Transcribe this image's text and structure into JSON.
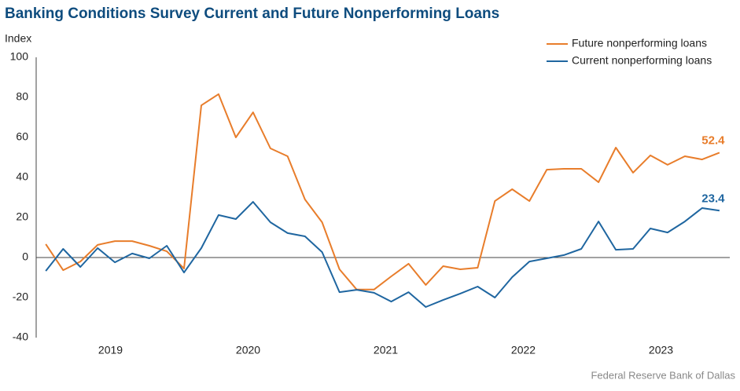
{
  "chart_data": {
    "type": "line",
    "title": "Banking Conditions Survey Current and Future Nonperforming Loans",
    "y_label": "Index",
    "source": "Federal Reserve Bank of Dallas",
    "x": [
      2019.03,
      2019.156,
      2019.281,
      2019.407,
      2019.532,
      2019.658,
      2019.783,
      2019.909,
      2020.034,
      2020.16,
      2020.285,
      2020.411,
      2020.536,
      2020.662,
      2020.787,
      2020.913,
      2021.038,
      2021.164,
      2021.289,
      2021.415,
      2021.54,
      2021.666,
      2021.791,
      2021.917,
      2022.042,
      2022.168,
      2022.293,
      2022.419,
      2022.544,
      2022.67,
      2022.795,
      2022.921,
      2023.046,
      2023.172,
      2023.297,
      2023.423,
      2023.548,
      2023.674,
      2023.799,
      2023.925
    ],
    "series": [
      {
        "name": "Future nonperforming loans",
        "color": "#e87d2b",
        "values": [
          6.7,
          -6.3,
          -2,
          6.3,
          8.2,
          8.2,
          5.9,
          3.1,
          -5.5,
          76,
          81.6,
          60,
          72.5,
          54.5,
          50.6,
          29,
          17.6,
          -5.9,
          -16,
          -16,
          -9.4,
          -3.1,
          -13.7,
          -4.3,
          -5.9,
          -5.1,
          28.2,
          34.1,
          28.2,
          43.9,
          44.3,
          44.3,
          37.6,
          54.9,
          42.4,
          51,
          46.3,
          50.6,
          49,
          52.4
        ]
      },
      {
        "name": "Current nonperforming loans",
        "color": "#1f66a0",
        "values": [
          -6.7,
          4.3,
          -4.7,
          4.7,
          -2.4,
          2,
          -0.4,
          5.9,
          -7.5,
          4.7,
          21.2,
          19.2,
          27.8,
          17.6,
          12.2,
          10.6,
          2.7,
          -17.3,
          -16.1,
          -17.6,
          -22,
          -17.3,
          -24.7,
          -21.2,
          -18,
          -14.5,
          -20,
          -9.8,
          -2,
          -0.4,
          1.2,
          4.3,
          18,
          3.9,
          4.3,
          14.5,
          12.5,
          18,
          24.7,
          23.4
        ]
      }
    ],
    "xlim": [
      2018.96,
      2024.0
    ],
    "xticks": [
      {
        "value": 2019.5,
        "label": "2019"
      },
      {
        "value": 2020.5,
        "label": "2020"
      },
      {
        "value": 2021.5,
        "label": "2021"
      },
      {
        "value": 2022.5,
        "label": "2022"
      },
      {
        "value": 2023.5,
        "label": "2023"
      }
    ],
    "ylim": [
      -40,
      100
    ],
    "yticks": [
      -40,
      -20,
      0,
      20,
      40,
      60,
      80,
      100
    ],
    "legend": "top-right"
  }
}
